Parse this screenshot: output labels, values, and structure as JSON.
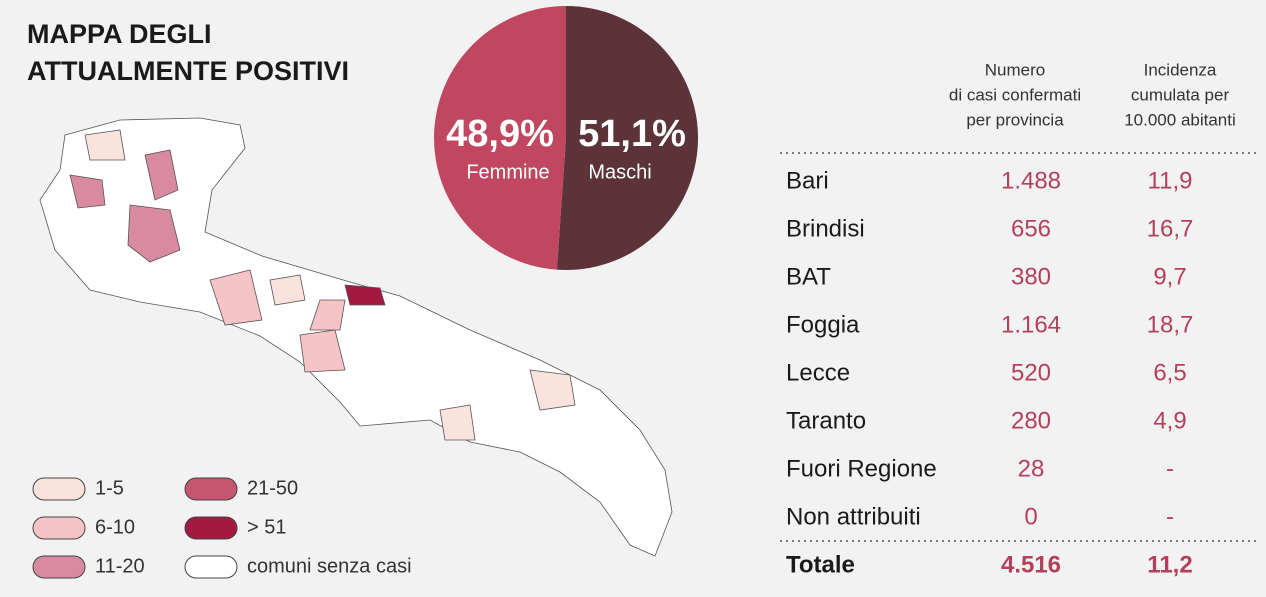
{
  "title": [
    "MAPPA DEGLI",
    "ATTUALMENTE POSITIVI"
  ],
  "chart_data": {
    "type": "pie",
    "categories": [
      "Femmine",
      "Maschi"
    ],
    "values": [
      48.9,
      51.1
    ],
    "value_labels": [
      "48,9%",
      "51,1%"
    ],
    "colors": [
      "#c0475f",
      "#5c3338"
    ]
  },
  "legend": [
    {
      "label": "1-5",
      "color": "#fbe3dd"
    },
    {
      "label": "6-10",
      "color": "#f6c3c6"
    },
    {
      "label": "11-20",
      "color": "#d88aa0"
    },
    {
      "label": "21-50",
      "color": "#c6566f"
    },
    {
      "label": "> 51",
      "color": "#a3193f"
    },
    {
      "label": "comuni senza casi",
      "color": "#ffffff"
    }
  ],
  "table": {
    "headers": [
      [
        "Numero",
        "di casi confermati",
        "per provincia"
      ],
      [
        "Incidenza",
        "cumulata per",
        "10.000 abitanti"
      ]
    ],
    "rows": [
      [
        "Bari",
        "1.488",
        "11,9"
      ],
      [
        "Brindisi",
        "656",
        "16,7"
      ],
      [
        "BAT",
        "380",
        "9,7"
      ],
      [
        "Foggia",
        "1.164",
        "18,7"
      ],
      [
        "Lecce",
        "520",
        "6,5"
      ],
      [
        "Taranto",
        "280",
        "4,9"
      ],
      [
        "Fuori Regione",
        "28",
        "-"
      ],
      [
        "Non attribuiti",
        "0",
        "-"
      ]
    ],
    "total": [
      "Totale",
      "4.516",
      "11,2"
    ]
  }
}
